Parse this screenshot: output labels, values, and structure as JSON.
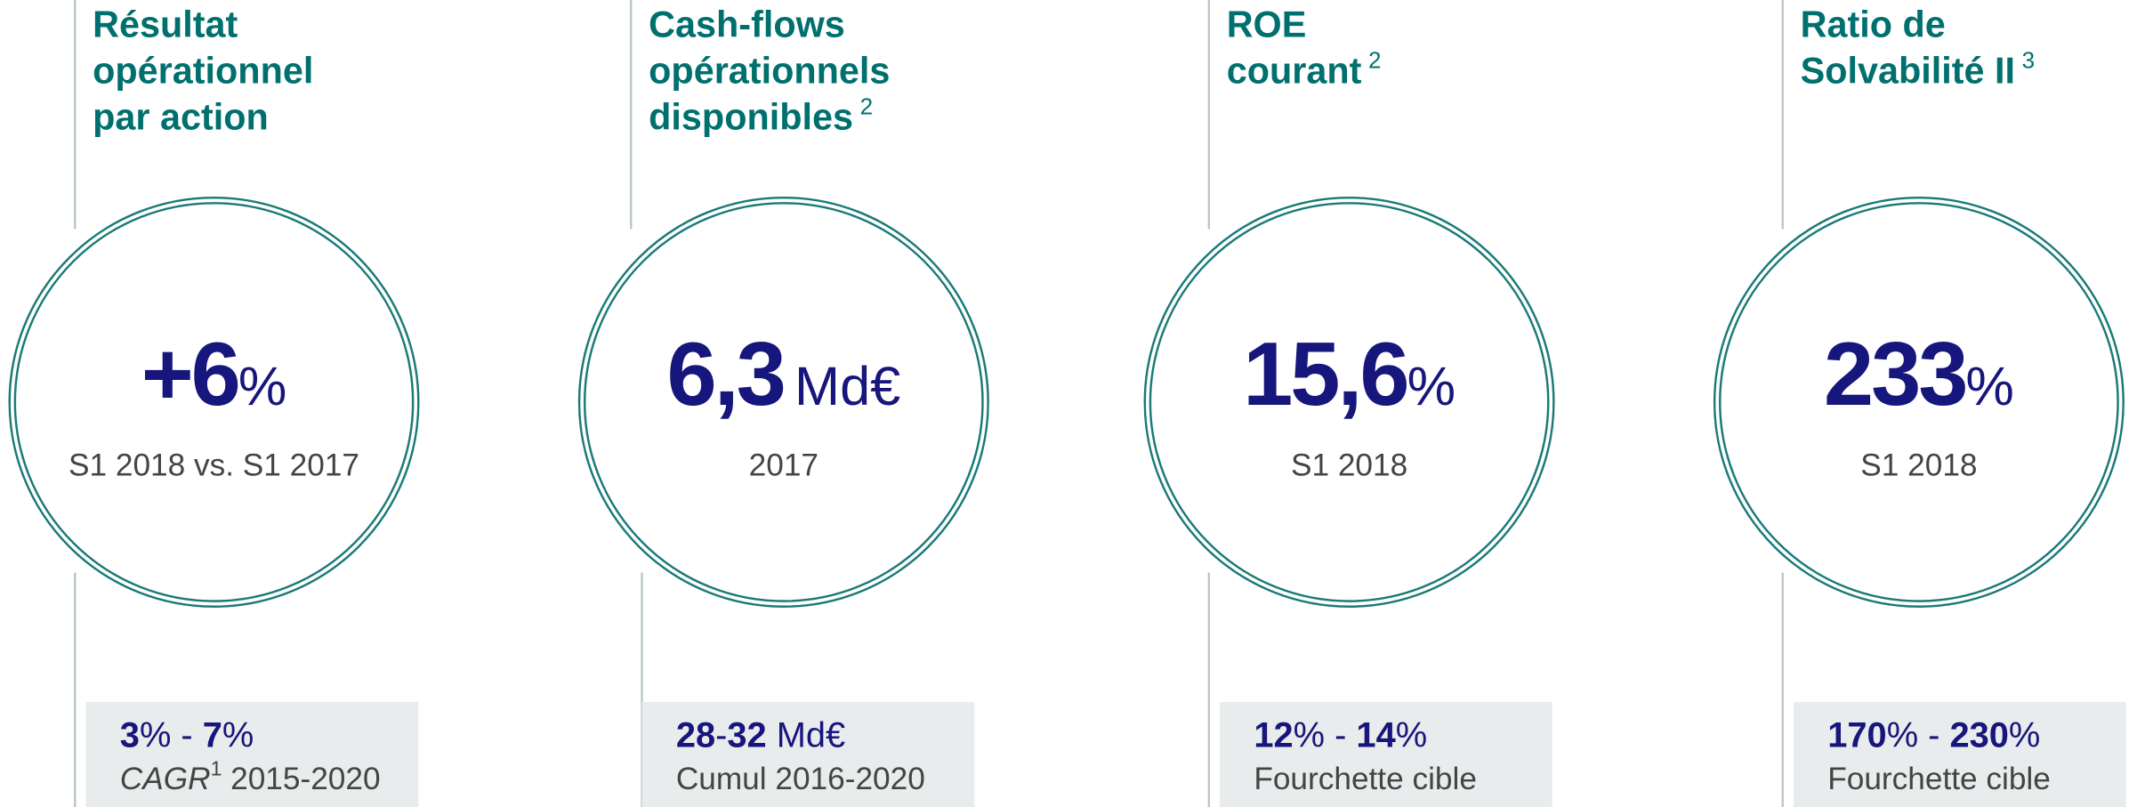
{
  "panels": [
    {
      "title": [
        "Résultat",
        "opérationnel",
        "par action"
      ],
      "title_note": null,
      "value": "+6",
      "unit": "%",
      "caption": "S1 2018 vs. S1 2017",
      "target": [
        {
          "text": "3",
          "bold": true
        },
        {
          "text": "%"
        },
        {
          "text": " - "
        },
        {
          "text": "7",
          "bold": true
        },
        {
          "text": "%"
        }
      ],
      "target_caption": [
        {
          "text": "CAGR",
          "italic": true
        },
        {
          "text": "1",
          "sup": true
        },
        {
          "text": " 2015-2020"
        }
      ]
    },
    {
      "title": [
        "Cash-flows",
        "opérationnels",
        "disponibles"
      ],
      "title_note": "2",
      "value": "6,3",
      "unit": "Md€",
      "caption": "2017",
      "target": [
        {
          "text": "28",
          "bold": true
        },
        {
          "text": "-"
        },
        {
          "text": "32",
          "bold": true
        },
        {
          "text": " Md€"
        }
      ],
      "target_caption": [
        {
          "text": "Cumul 2016-2020"
        }
      ]
    },
    {
      "title": [
        "ROE",
        "courant"
      ],
      "title_note": "2",
      "value": "15,6",
      "unit": "%",
      "caption": "S1 2018",
      "target": [
        {
          "text": "12",
          "bold": true
        },
        {
          "text": "%"
        },
        {
          "text": " - "
        },
        {
          "text": "14",
          "bold": true
        },
        {
          "text": "%"
        }
      ],
      "target_caption": [
        {
          "text": "Fourchette cible"
        }
      ]
    },
    {
      "title": [
        "Ratio de",
        "Solvabilité II"
      ],
      "title_note": "3",
      "value": "233",
      "unit": "%",
      "caption": "S1 2018",
      "target": [
        {
          "text": "170",
          "bold": true
        },
        {
          "text": "%"
        },
        {
          "text": " - "
        },
        {
          "text": "230",
          "bold": true
        },
        {
          "text": "%"
        }
      ],
      "target_caption": [
        {
          "text": "Fourchette cible"
        }
      ]
    }
  ]
}
